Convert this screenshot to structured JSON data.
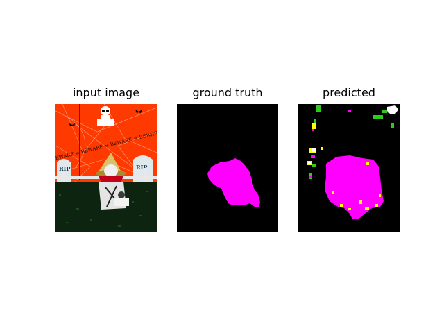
{
  "panels": [
    {
      "title": "input image"
    },
    {
      "title": "ground truth"
    },
    {
      "title": "predicted"
    }
  ],
  "input_image": {
    "banner_text": "BEWARE ☠ BEWARE ☠ BEWARE ☠ BEWARE",
    "tombstone_text": "RIP",
    "colors": {
      "sky": "#ff3a00",
      "grass": "#0c2410",
      "fence": "#e8e8e8"
    }
  },
  "mask_colors": {
    "background": "#000000",
    "segment": "#ff00ff",
    "grass_class": "#2ecc1a",
    "noise_class": "#ffff00"
  }
}
